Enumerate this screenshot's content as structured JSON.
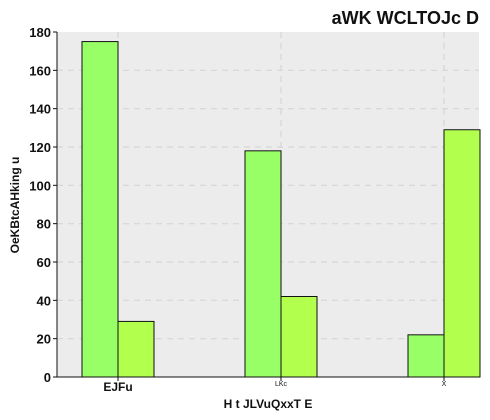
{
  "chart_data": {
    "type": "bar",
    "title": "aWK WCLTOJc D",
    "xlabel": "H t JLVuQxxT E",
    "ylabel": "OeKBtcAHking u",
    "categories": [
      "EJFu",
      "LKc",
      "X"
    ],
    "series": [
      {
        "values": [
          175,
          118,
          22
        ]
      },
      {
        "values": [
          29,
          42,
          129
        ]
      }
    ],
    "ylim": [
      0,
      180
    ],
    "yticks": [
      0,
      20,
      40,
      60,
      80,
      100,
      120,
      140,
      160,
      180
    ],
    "grid": true,
    "colors": [
      "#99ff66",
      "#b3ff4d"
    ],
    "background": "#ececec",
    "grid_color": "#d6d6d6"
  }
}
